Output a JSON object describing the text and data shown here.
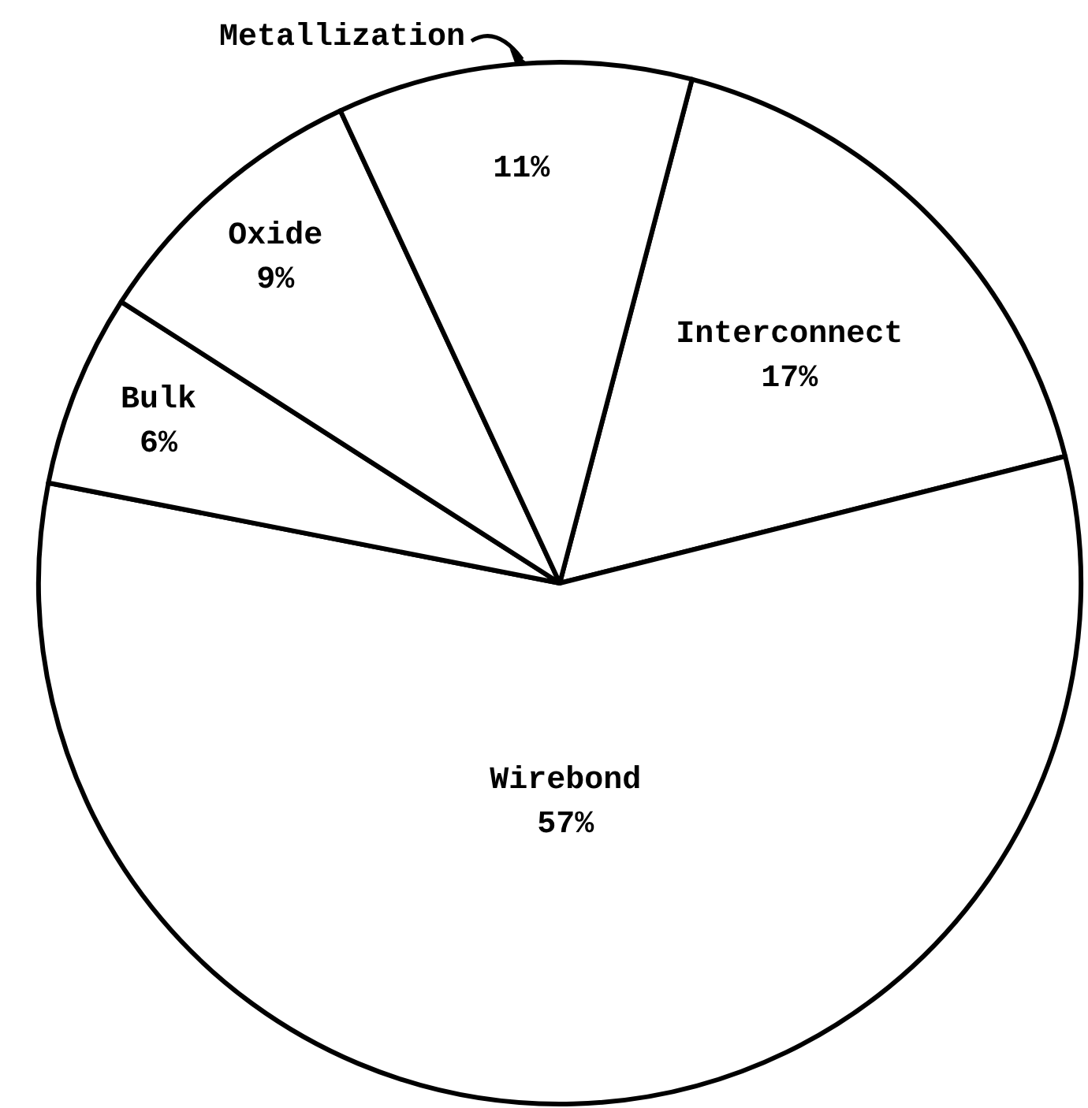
{
  "chart_data": {
    "type": "pie",
    "categories": [
      "Interconnect",
      "Wirebond",
      "Bulk",
      "Oxide",
      "Metallization"
    ],
    "values": [
      17,
      57,
      6,
      9,
      11
    ],
    "value_labels": [
      "17%",
      "57%",
      "6%",
      "9%",
      "11%"
    ],
    "colors": [
      "#ffffff",
      "#ffffff",
      "#ffffff",
      "#ffffff",
      "#ffffff"
    ]
  }
}
